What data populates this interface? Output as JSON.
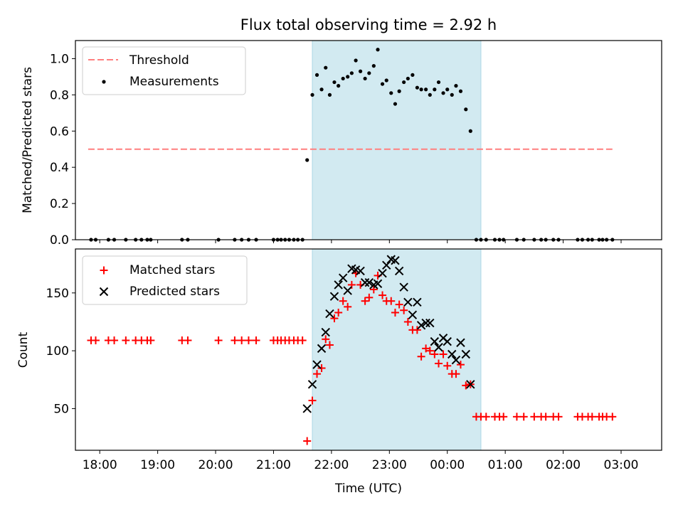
{
  "title": "Flux total observing time = 2.92 h",
  "colors": {
    "threshold": "#ff7f7f",
    "measurements": "#000000",
    "matched": "#ff0000",
    "predicted": "#000000",
    "shade": "#add8e6"
  },
  "chart_data": [
    {
      "type": "scatter",
      "ylabel": "Matched/Predicted stars",
      "ylim": [
        0,
        1.1
      ],
      "yticks": [
        0.0,
        0.2,
        0.4,
        0.6,
        0.8,
        1.0
      ],
      "xlim": [
        -0.42,
        9.7
      ],
      "xtick_values": [
        0,
        1,
        2,
        3,
        4,
        5,
        6,
        7,
        8,
        9
      ],
      "xtick_labels": [
        "18:00",
        "19:00",
        "20:00",
        "21:00",
        "22:00",
        "23:00",
        "00:00",
        "01:00",
        "02:00",
        "03:00"
      ],
      "shaded_interval": {
        "from": 3.67,
        "to": 6.58
      },
      "legend": {
        "position": "top-left",
        "threshold_label": "Threshold",
        "measurements_label": "Measurements"
      },
      "threshold": {
        "y": 0.5,
        "x_from": -0.2,
        "x_to": 8.85
      },
      "measurements": [
        [
          -0.15,
          0
        ],
        [
          -0.07,
          0
        ],
        [
          0.15,
          0
        ],
        [
          0.25,
          0
        ],
        [
          0.45,
          0
        ],
        [
          0.62,
          0
        ],
        [
          0.72,
          0
        ],
        [
          0.82,
          0
        ],
        [
          0.88,
          0
        ],
        [
          1.42,
          0
        ],
        [
          1.52,
          0
        ],
        [
          2.05,
          0
        ],
        [
          2.33,
          0
        ],
        [
          2.45,
          0
        ],
        [
          2.57,
          0
        ],
        [
          2.7,
          0
        ],
        [
          3.0,
          0
        ],
        [
          3.07,
          0
        ],
        [
          3.13,
          0
        ],
        [
          3.2,
          0
        ],
        [
          3.27,
          0
        ],
        [
          3.35,
          0
        ],
        [
          3.42,
          0
        ],
        [
          3.5,
          0
        ],
        [
          3.58,
          0.44
        ],
        [
          3.67,
          0.8
        ],
        [
          3.75,
          0.91
        ],
        [
          3.83,
          0.83
        ],
        [
          3.9,
          0.95
        ],
        [
          3.97,
          0.8
        ],
        [
          4.05,
          0.87
        ],
        [
          4.12,
          0.85
        ],
        [
          4.2,
          0.89
        ],
        [
          4.28,
          0.9
        ],
        [
          4.35,
          0.92
        ],
        [
          4.42,
          0.99
        ],
        [
          4.5,
          0.93
        ],
        [
          4.58,
          0.89
        ],
        [
          4.65,
          0.92
        ],
        [
          4.73,
          0.96
        ],
        [
          4.8,
          1.05
        ],
        [
          4.88,
          0.86
        ],
        [
          4.95,
          0.88
        ],
        [
          5.03,
          0.81
        ],
        [
          5.1,
          0.75
        ],
        [
          5.17,
          0.82
        ],
        [
          5.25,
          0.87
        ],
        [
          5.32,
          0.89
        ],
        [
          5.4,
          0.91
        ],
        [
          5.48,
          0.84
        ],
        [
          5.55,
          0.83
        ],
        [
          5.63,
          0.83
        ],
        [
          5.7,
          0.8
        ],
        [
          5.78,
          0.83
        ],
        [
          5.85,
          0.87
        ],
        [
          5.93,
          0.81
        ],
        [
          6.0,
          0.83
        ],
        [
          6.08,
          0.8
        ],
        [
          6.15,
          0.85
        ],
        [
          6.23,
          0.82
        ],
        [
          6.32,
          0.72
        ],
        [
          6.4,
          0.6
        ],
        [
          6.5,
          0
        ],
        [
          6.58,
          0
        ],
        [
          6.67,
          0
        ],
        [
          6.82,
          0
        ],
        [
          6.9,
          0
        ],
        [
          6.97,
          0
        ],
        [
          7.2,
          0
        ],
        [
          7.32,
          0
        ],
        [
          7.5,
          0
        ],
        [
          7.62,
          0
        ],
        [
          7.7,
          0
        ],
        [
          7.83,
          0
        ],
        [
          7.92,
          0
        ],
        [
          8.25,
          0
        ],
        [
          8.33,
          0
        ],
        [
          8.43,
          0
        ],
        [
          8.5,
          0
        ],
        [
          8.62,
          0
        ],
        [
          8.68,
          0
        ],
        [
          8.75,
          0
        ],
        [
          8.85,
          0
        ]
      ]
    },
    {
      "type": "scatter",
      "ylabel": "Count",
      "xlabel": "Time (UTC)",
      "ylim": [
        14,
        188
      ],
      "yticks": [
        50,
        100,
        150
      ],
      "xlim": [
        -0.42,
        9.7
      ],
      "xtick_values": [
        0,
        1,
        2,
        3,
        4,
        5,
        6,
        7,
        8,
        9
      ],
      "xtick_labels": [
        "18:00",
        "19:00",
        "20:00",
        "21:00",
        "22:00",
        "23:00",
        "00:00",
        "01:00",
        "02:00",
        "03:00"
      ],
      "shaded_interval": {
        "from": 3.67,
        "to": 6.58
      },
      "legend": {
        "position": "top-left"
      },
      "series": [
        {
          "name": "Matched stars",
          "marker": "plus",
          "points": [
            [
              -0.15,
              109
            ],
            [
              -0.07,
              109
            ],
            [
              0.15,
              109
            ],
            [
              0.25,
              109
            ],
            [
              0.45,
              109
            ],
            [
              0.62,
              109
            ],
            [
              0.72,
              109
            ],
            [
              0.82,
              109
            ],
            [
              0.88,
              109
            ],
            [
              1.42,
              109
            ],
            [
              1.52,
              109
            ],
            [
              2.05,
              109
            ],
            [
              2.33,
              109
            ],
            [
              2.45,
              109
            ],
            [
              2.57,
              109
            ],
            [
              2.7,
              109
            ],
            [
              3.0,
              109
            ],
            [
              3.07,
              109
            ],
            [
              3.13,
              109
            ],
            [
              3.2,
              109
            ],
            [
              3.27,
              109
            ],
            [
              3.35,
              109
            ],
            [
              3.42,
              109
            ],
            [
              3.5,
              109
            ],
            [
              3.58,
              22
            ],
            [
              3.67,
              57
            ],
            [
              3.75,
              80
            ],
            [
              3.83,
              85
            ],
            [
              3.9,
              110
            ],
            [
              3.97,
              105
            ],
            [
              4.05,
              128
            ],
            [
              4.12,
              133
            ],
            [
              4.2,
              143
            ],
            [
              4.28,
              138
            ],
            [
              4.35,
              157
            ],
            [
              4.42,
              167
            ],
            [
              4.5,
              157
            ],
            [
              4.58,
              143
            ],
            [
              4.65,
              146
            ],
            [
              4.73,
              153
            ],
            [
              4.8,
              165
            ],
            [
              4.88,
              148
            ],
            [
              4.95,
              143
            ],
            [
              5.03,
              143
            ],
            [
              5.1,
              133
            ],
            [
              5.17,
              140
            ],
            [
              5.25,
              135
            ],
            [
              5.32,
              125
            ],
            [
              5.4,
              118
            ],
            [
              5.48,
              118
            ],
            [
              5.55,
              95
            ],
            [
              5.63,
              102
            ],
            [
              5.7,
              100
            ],
            [
              5.78,
              97
            ],
            [
              5.85,
              89
            ],
            [
              5.93,
              97
            ],
            [
              6.0,
              87
            ],
            [
              6.08,
              80
            ],
            [
              6.15,
              80
            ],
            [
              6.23,
              88
            ],
            [
              6.32,
              70
            ],
            [
              6.4,
              71
            ],
            [
              6.5,
              43
            ],
            [
              6.58,
              43
            ],
            [
              6.67,
              43
            ],
            [
              6.82,
              43
            ],
            [
              6.9,
              43
            ],
            [
              6.97,
              43
            ],
            [
              7.2,
              43
            ],
            [
              7.32,
              43
            ],
            [
              7.5,
              43
            ],
            [
              7.62,
              43
            ],
            [
              7.7,
              43
            ],
            [
              7.83,
              43
            ],
            [
              7.92,
              43
            ],
            [
              8.25,
              43
            ],
            [
              8.33,
              43
            ],
            [
              8.43,
              43
            ],
            [
              8.5,
              43
            ],
            [
              8.62,
              43
            ],
            [
              8.68,
              43
            ],
            [
              8.75,
              43
            ],
            [
              8.85,
              43
            ]
          ]
        },
        {
          "name": "Predicted stars",
          "marker": "x",
          "points": [
            [
              3.58,
              50
            ],
            [
              3.67,
              71
            ],
            [
              3.75,
              88
            ],
            [
              3.83,
              102
            ],
            [
              3.9,
              116
            ],
            [
              3.97,
              132
            ],
            [
              4.05,
              147
            ],
            [
              4.12,
              157
            ],
            [
              4.2,
              163
            ],
            [
              4.28,
              152
            ],
            [
              4.35,
              171
            ],
            [
              4.42,
              170
            ],
            [
              4.5,
              169
            ],
            [
              4.58,
              159
            ],
            [
              4.65,
              159
            ],
            [
              4.73,
              157
            ],
            [
              4.8,
              158
            ],
            [
              4.88,
              167
            ],
            [
              4.95,
              174
            ],
            [
              5.03,
              179
            ],
            [
              5.1,
              178
            ],
            [
              5.17,
              169
            ],
            [
              5.25,
              155
            ],
            [
              5.32,
              142
            ],
            [
              5.4,
              131
            ],
            [
              5.48,
              142
            ],
            [
              5.55,
              122
            ],
            [
              5.63,
              124
            ],
            [
              5.7,
              124
            ],
            [
              5.78,
              108
            ],
            [
              5.85,
              103
            ],
            [
              5.93,
              111
            ],
            [
              6.0,
              108
            ],
            [
              6.08,
              97
            ],
            [
              6.15,
              92
            ],
            [
              6.23,
              107
            ],
            [
              6.32,
              97
            ],
            [
              6.4,
              71
            ]
          ]
        }
      ]
    }
  ]
}
